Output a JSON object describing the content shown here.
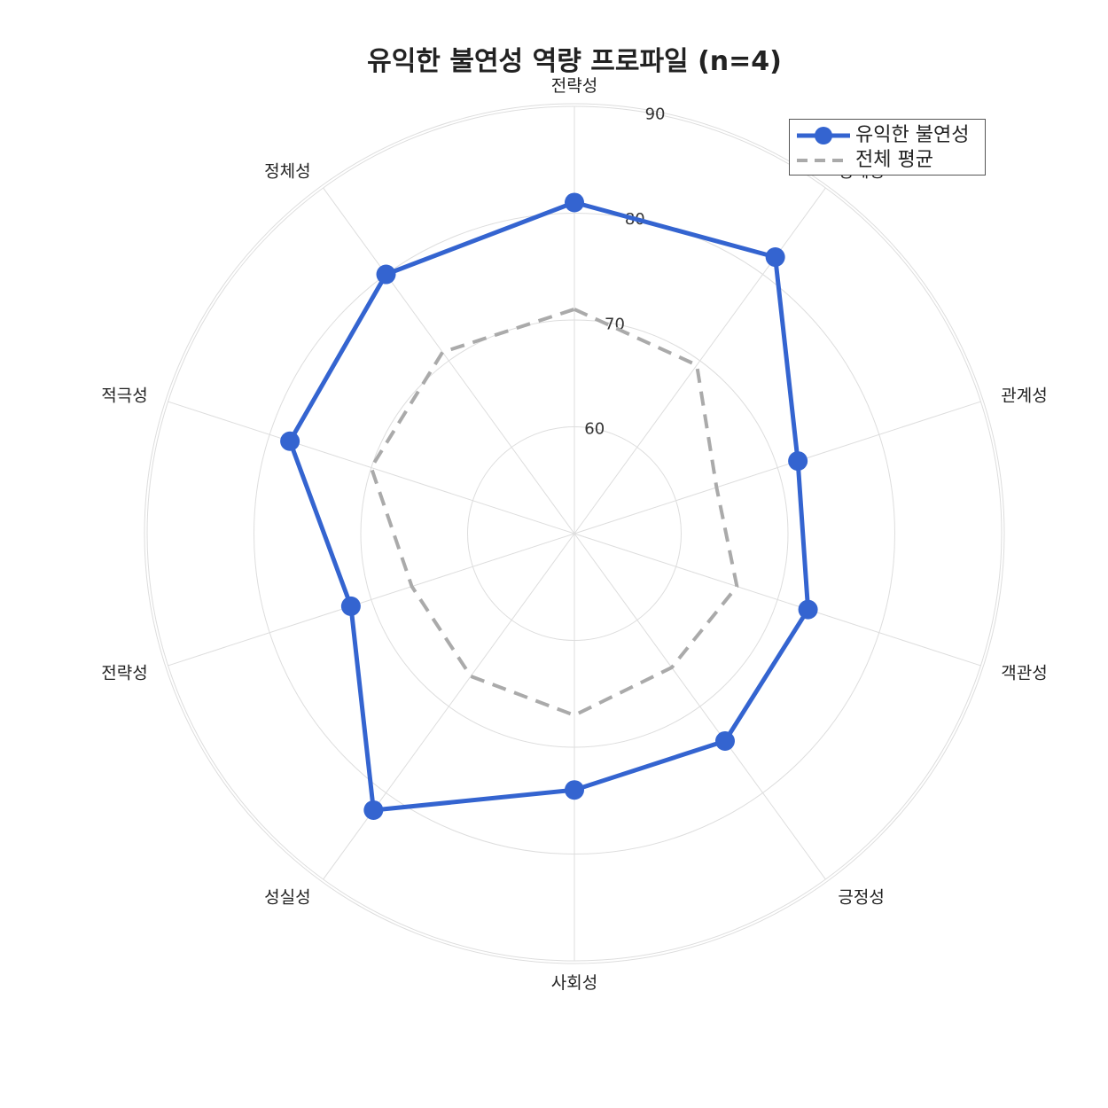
{
  "chart_data": {
    "type": "radar",
    "title": "유익한 불연성 역량 프로파일 (n=4)",
    "categories": [
      "전략성",
      "정체성",
      "관계성",
      "객관성",
      "긍정성",
      "사회성",
      "성실성",
      "전략성",
      "적극성",
      "정체성"
    ],
    "series": [
      {
        "name": "유익한 불연성",
        "values": [
          81,
          82,
          72,
          73,
          74,
          74,
          82,
          72,
          78,
          80
        ],
        "color": "#3464d0",
        "style": "solid",
        "marker": "circle"
      },
      {
        "name": "전체 평균",
        "values": [
          71,
          69.5,
          64,
          66,
          65.5,
          67,
          66.5,
          66,
          70,
          71
        ],
        "color": "#aaaaaa",
        "style": "dashed",
        "marker": "none"
      }
    ],
    "rlim": [
      50,
      90
    ],
    "rticks": [
      60,
      70,
      80,
      90
    ],
    "grid": true,
    "legend_position": "top-right"
  }
}
